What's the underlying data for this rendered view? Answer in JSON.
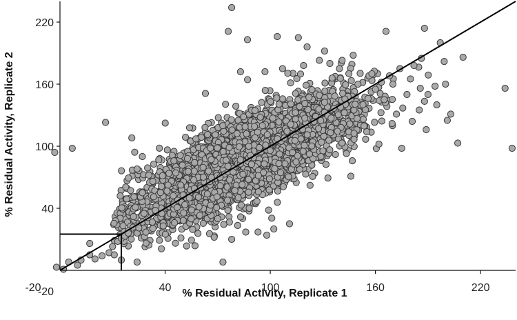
{
  "chart_data": {
    "type": "scatter",
    "title": "",
    "xlabel": "% Residual Activity, Replicate 1",
    "ylabel": "% Residual Activity, Replicate 2",
    "xlim": [
      -20,
      240
    ],
    "ylim": [
      -20,
      240
    ],
    "x_ticks": [
      -20,
      40,
      100,
      160,
      220
    ],
    "y_ticks": [
      -20,
      40,
      100,
      160,
      220
    ],
    "x_tick_labels": [
      "-20",
      "40",
      "100",
      "160",
      "220"
    ],
    "y_tick_labels": [
      "-20",
      "40",
      "100",
      "160",
      "220"
    ],
    "marker": {
      "fill": "#a9a9a9",
      "stroke": "#3a3a3a"
    },
    "reference_line": {
      "x": [
        -20,
        240
      ],
      "y": [
        -20,
        240
      ],
      "color": "#000000"
    },
    "threshold_box": {
      "x": [
        -20,
        15
      ],
      "y": [
        -20,
        15
      ],
      "color": "#000000"
    },
    "cloud": {
      "n": 3800,
      "x_mean": 86,
      "x_sd": 30,
      "slope": 0.78,
      "intercept": 20,
      "noise_sd": 19,
      "x_min": 10,
      "x_max": 200
    },
    "points": [
      [
        78,
        234
      ],
      [
        76,
        211
      ],
      [
        104,
        206
      ],
      [
        166,
        211
      ],
      [
        188,
        214
      ],
      [
        197,
        200
      ],
      [
        121,
        196
      ],
      [
        131,
        192
      ],
      [
        128,
        183
      ],
      [
        134,
        180
      ],
      [
        119,
        178
      ],
      [
        141,
        183
      ],
      [
        210,
        186
      ],
      [
        234,
        156
      ],
      [
        238,
        98
      ],
      [
        207,
        103
      ],
      [
        165,
        145
      ],
      [
        172,
        131
      ],
      [
        181,
        124
      ],
      [
        189,
        116
      ],
      [
        175,
        98
      ],
      [
        162,
        102
      ],
      [
        150,
        160
      ],
      [
        160,
        155
      ],
      [
        170,
        160
      ],
      [
        180,
        165
      ],
      [
        190,
        150
      ],
      [
        195,
        140
      ],
      [
        185,
        135
      ],
      [
        178,
        150
      ],
      [
        168,
        168
      ],
      [
        174,
        175
      ],
      [
        182,
        178
      ],
      [
        194,
        158
      ],
      [
        200,
        160
      ],
      [
        158,
        170
      ],
      [
        63,
        151
      ],
      [
        83,
        172
      ],
      [
        97,
        172
      ],
      [
        107,
        175
      ],
      [
        6,
        123
      ],
      [
        -13,
        98
      ],
      [
        21,
        108
      ],
      [
        27,
        90
      ],
      [
        30,
        79
      ],
      [
        33,
        66
      ],
      [
        24,
        78
      ],
      [
        26,
        51
      ],
      [
        27,
        55
      ],
      [
        23,
        41
      ],
      [
        -10,
        -15
      ],
      [
        -15,
        -12
      ],
      [
        -8,
        -10
      ],
      [
        -3,
        -5
      ],
      [
        0,
        -9
      ],
      [
        4,
        -6
      ],
      [
        8,
        -3
      ],
      [
        10,
        3
      ],
      [
        13,
        8
      ],
      [
        15,
        11
      ],
      [
        17,
        13
      ],
      [
        19,
        16
      ],
      [
        24,
        16
      ],
      [
        25,
        21
      ],
      [
        11,
        -5
      ],
      [
        15,
        -10
      ],
      [
        24,
        -12
      ],
      [
        -3,
        6
      ],
      [
        -18,
        -19
      ],
      [
        73,
        -12
      ],
      [
        78,
        10
      ],
      [
        86,
        17
      ],
      [
        93,
        17
      ],
      [
        98,
        14
      ],
      [
        102,
        20
      ],
      [
        111,
        25
      ],
      [
        -23,
        94
      ],
      [
        -22,
        -17
      ],
      [
        116,
        205
      ],
      [
        87,
        203
      ],
      [
        201,
        125
      ],
      [
        203,
        131
      ],
      [
        146,
        71
      ],
      [
        70,
        30
      ],
      [
        88,
        40
      ],
      [
        68,
        12
      ]
    ]
  }
}
